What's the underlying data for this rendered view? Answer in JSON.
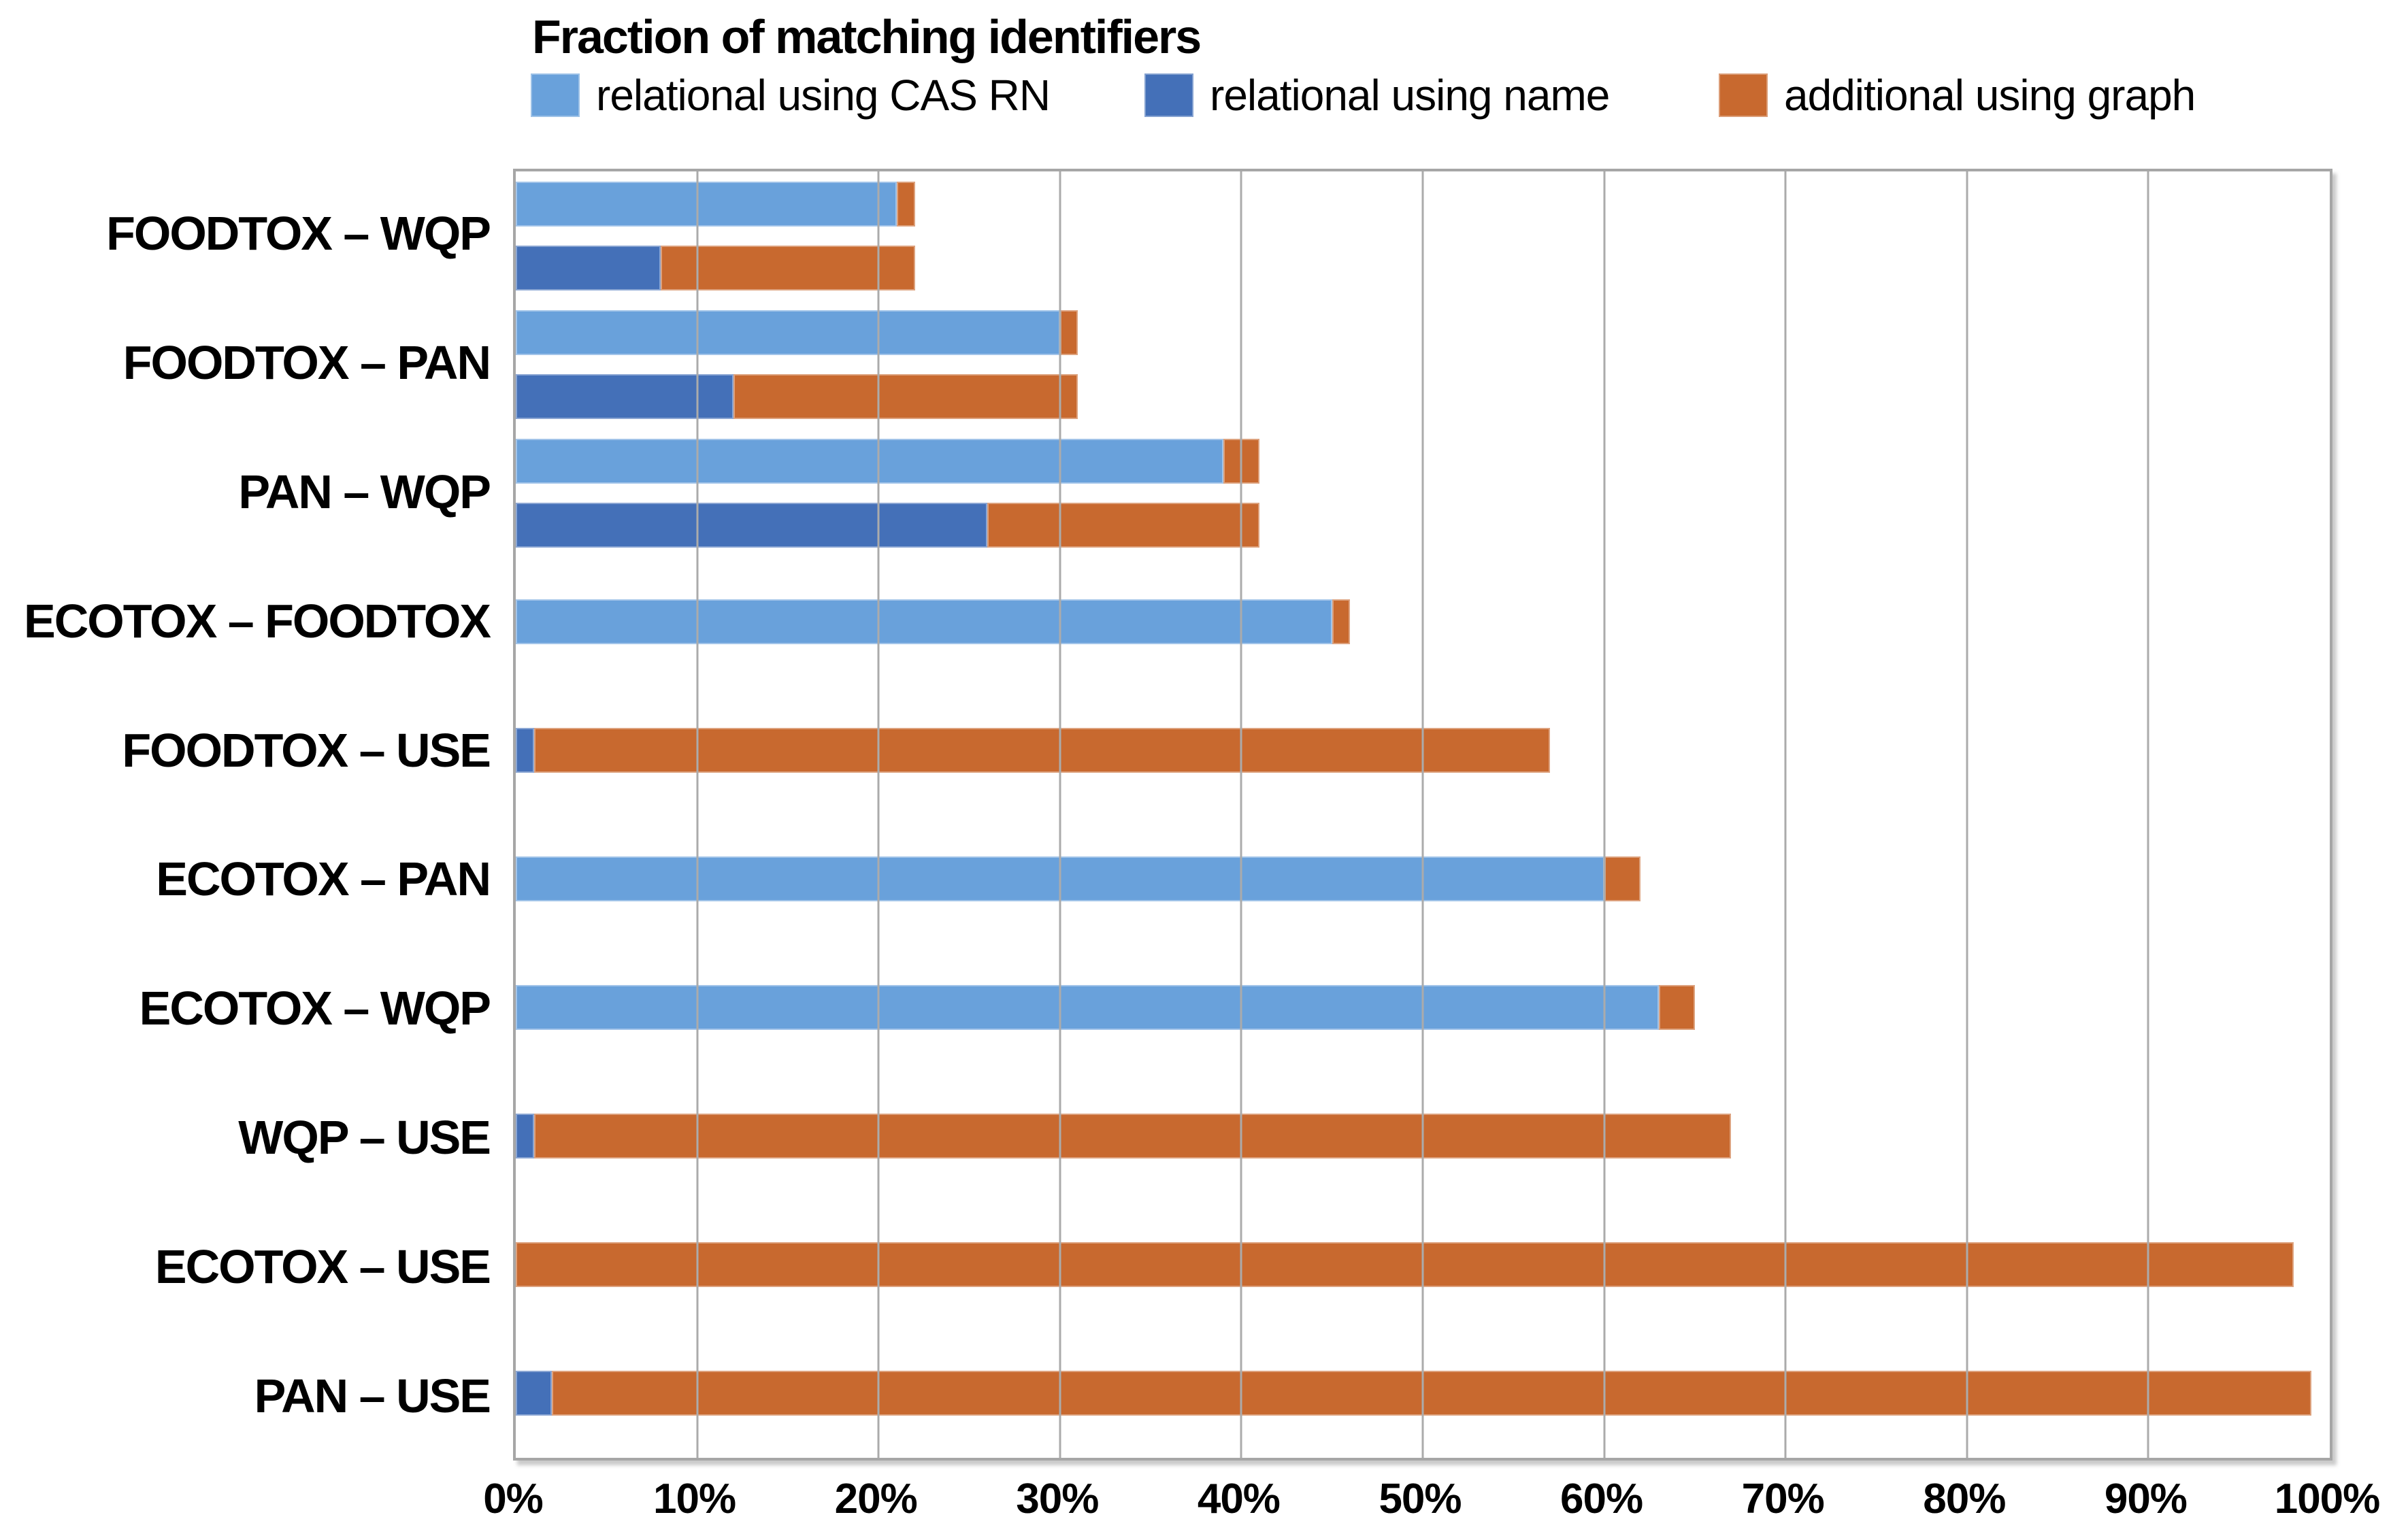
{
  "title": "Fraction of matching identifiers",
  "legend": [
    {
      "label": "relational using CAS RN",
      "color": "#69A1DB"
    },
    {
      "label": "relational using name",
      "color": "#4470B8"
    },
    {
      "label": "additional using graph",
      "color": "#C8692F"
    }
  ],
  "colors": {
    "light_blue": "#69A1DB",
    "dark_blue": "#4470B8",
    "orange": "#C8692F",
    "gridline": "#ABABAB",
    "plot_border": "#A6A6A6",
    "text": "#000000"
  },
  "x_axis": {
    "tick_labels": [
      "0%",
      "10%",
      "20%",
      "30%",
      "40%",
      "50%",
      "60%",
      "70%",
      "80%",
      "90%",
      "100%"
    ],
    "min": 0,
    "max": 100
  },
  "chart_data": {
    "type": "bar",
    "orientation": "horizontal",
    "title": "Fraction of matching identifiers",
    "xlim": [
      0,
      100
    ],
    "grid": true,
    "legend_position": "top",
    "series_names": [
      "relational using CAS RN",
      "relational using name",
      "additional using graph"
    ],
    "categories": [
      "FOODTOX – WQP",
      "FOODTOX – PAN",
      "PAN – WQP",
      "ECOTOX – FOODTOX",
      "FOODTOX – USE",
      "ECOTOX – PAN",
      "ECOTOX – WQP",
      "WQP – USE",
      "ECOTOX – USE",
      "PAN – USE"
    ],
    "rows": [
      {
        "category": "FOODTOX – WQP",
        "bars": [
          {
            "segments": [
              {
                "series": 0,
                "value": 21
              },
              {
                "series": 2,
                "value": 1
              }
            ]
          },
          {
            "segments": [
              {
                "series": 1,
                "value": 8
              },
              {
                "series": 2,
                "value": 14
              }
            ]
          }
        ]
      },
      {
        "category": "FOODTOX – PAN",
        "bars": [
          {
            "segments": [
              {
                "series": 0,
                "value": 30
              },
              {
                "series": 2,
                "value": 1
              }
            ]
          },
          {
            "segments": [
              {
                "series": 1,
                "value": 12
              },
              {
                "series": 2,
                "value": 19
              }
            ]
          }
        ]
      },
      {
        "category": "PAN – WQP",
        "bars": [
          {
            "segments": [
              {
                "series": 0,
                "value": 39
              },
              {
                "series": 2,
                "value": 2
              }
            ]
          },
          {
            "segments": [
              {
                "series": 1,
                "value": 26
              },
              {
                "series": 2,
                "value": 15
              }
            ]
          }
        ]
      },
      {
        "category": "ECOTOX – FOODTOX",
        "bars": [
          {
            "segments": [
              {
                "series": 0,
                "value": 45
              },
              {
                "series": 2,
                "value": 1
              }
            ]
          }
        ]
      },
      {
        "category": "FOODTOX – USE",
        "bars": [
          {
            "segments": [
              {
                "series": 1,
                "value": 1
              },
              {
                "series": 2,
                "value": 56
              }
            ]
          }
        ]
      },
      {
        "category": "ECOTOX – PAN",
        "bars": [
          {
            "segments": [
              {
                "series": 0,
                "value": 60
              },
              {
                "series": 2,
                "value": 2
              }
            ]
          }
        ]
      },
      {
        "category": "ECOTOX – WQP",
        "bars": [
          {
            "segments": [
              {
                "series": 0,
                "value": 63
              },
              {
                "series": 2,
                "value": 2
              }
            ]
          }
        ]
      },
      {
        "category": "WQP – USE",
        "bars": [
          {
            "segments": [
              {
                "series": 1,
                "value": 1
              },
              {
                "series": 2,
                "value": 66
              }
            ]
          }
        ]
      },
      {
        "category": "ECOTOX – USE",
        "bars": [
          {
            "segments": [
              {
                "series": 2,
                "value": 98
              }
            ]
          }
        ]
      },
      {
        "category": "PAN – USE",
        "bars": [
          {
            "segments": [
              {
                "series": 1,
                "value": 2
              },
              {
                "series": 2,
                "value": 97
              }
            ]
          }
        ]
      }
    ]
  }
}
